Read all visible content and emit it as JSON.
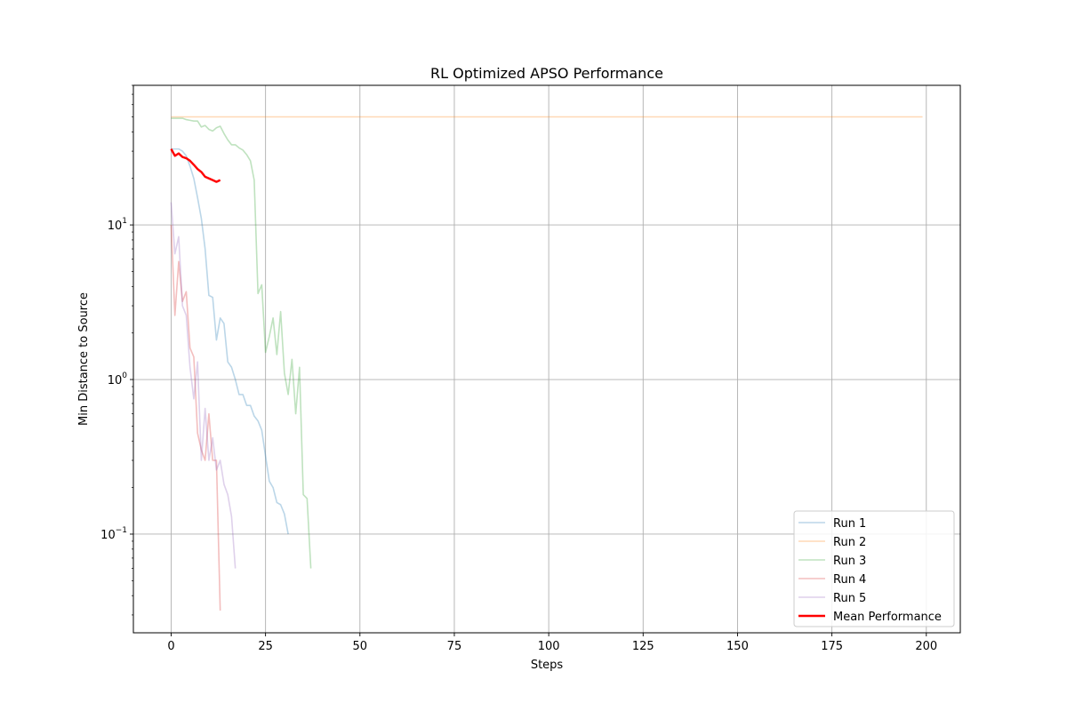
{
  "chart_data": {
    "type": "line",
    "title": "RL Optimized APSO Performance",
    "xlabel": "Steps",
    "ylabel": "Min Distance to Source",
    "yscale": "log",
    "xlim": [
      -10,
      209
    ],
    "ylim": [
      0.023,
      80
    ],
    "xticks": [
      0,
      25,
      50,
      75,
      100,
      125,
      150,
      175,
      200
    ],
    "yticks": [
      {
        "value": 0.1,
        "base": "10",
        "exp": "−1"
      },
      {
        "value": 1,
        "base": "10",
        "exp": "0"
      },
      {
        "value": 10,
        "base": "10",
        "exp": "1"
      }
    ],
    "grid": true,
    "legend_position": "bottom-right",
    "series": [
      {
        "name": "Run 1",
        "color": "#1f77b4",
        "opacity": 0.3,
        "x": [
          0,
          1,
          2,
          3,
          4,
          5,
          6,
          7,
          8,
          9,
          10,
          11,
          12,
          13,
          14,
          15,
          16,
          17,
          18,
          19,
          20,
          21,
          22,
          23,
          24,
          25,
          26,
          27,
          28,
          29,
          30,
          31
        ],
        "y": [
          31,
          31,
          31,
          30,
          28,
          24,
          20,
          15,
          11,
          7,
          3.5,
          3.4,
          1.8,
          2.5,
          2.3,
          1.3,
          1.2,
          1.0,
          0.8,
          0.8,
          0.68,
          0.68,
          0.58,
          0.54,
          0.47,
          0.32,
          0.22,
          0.2,
          0.16,
          0.155,
          0.135,
          0.1
        ]
      },
      {
        "name": "Run 2",
        "color": "#ff7f0e",
        "opacity": 0.3,
        "x": [
          0,
          199
        ],
        "y": [
          50,
          50
        ]
      },
      {
        "name": "Run 3",
        "color": "#2ca02c",
        "opacity": 0.3,
        "x": [
          0,
          1,
          2,
          3,
          4,
          5,
          6,
          7,
          8,
          9,
          10,
          11,
          12,
          13,
          14,
          15,
          16,
          17,
          18,
          19,
          20,
          21,
          22,
          23,
          24,
          25,
          26,
          27,
          28,
          29,
          30,
          31,
          32,
          33,
          34,
          35,
          36,
          37
        ],
        "y": [
          49,
          49,
          49,
          49,
          48,
          47.5,
          47,
          47,
          43,
          44,
          41.5,
          40.5,
          42.5,
          43.5,
          39,
          35.5,
          33,
          33,
          31.5,
          30.5,
          28.5,
          26,
          19.5,
          3.6,
          4.1,
          1.5,
          1.9,
          2.5,
          1.45,
          2.75,
          1.1,
          0.8,
          1.35,
          0.6,
          1.2,
          0.18,
          0.17,
          0.06
        ]
      },
      {
        "name": "Run 4",
        "color": "#d62728",
        "opacity": 0.3,
        "x": [
          0,
          1,
          2,
          3,
          4,
          5,
          6,
          7,
          8,
          9,
          10,
          11,
          12,
          13
        ],
        "y": [
          10,
          2.6,
          5.8,
          3.2,
          3.7,
          1.6,
          1.4,
          0.45,
          0.35,
          0.3,
          0.6,
          0.3,
          0.3,
          0.032
        ]
      },
      {
        "name": "Run 5",
        "color": "#9467bd",
        "opacity": 0.3,
        "x": [
          0,
          1,
          2,
          3,
          4,
          5,
          6,
          7,
          8,
          9,
          10,
          11,
          12,
          13,
          14,
          15,
          16,
          17
        ],
        "y": [
          14,
          6.5,
          8.4,
          3.0,
          2.6,
          1.2,
          0.75,
          1.3,
          0.3,
          0.65,
          0.3,
          0.42,
          0.26,
          0.3,
          0.21,
          0.18,
          0.13,
          0.06
        ]
      },
      {
        "name": "Mean Performance",
        "color": "#ff0000",
        "opacity": 1,
        "width": 2.4,
        "x": [
          0,
          1,
          2,
          3,
          4,
          5,
          6,
          7,
          8,
          9,
          10,
          11,
          12,
          13
        ],
        "y": [
          31,
          28,
          29,
          27.5,
          27,
          26,
          24.5,
          23,
          22,
          20.5,
          20,
          19.5,
          19,
          19.5
        ]
      }
    ]
  }
}
